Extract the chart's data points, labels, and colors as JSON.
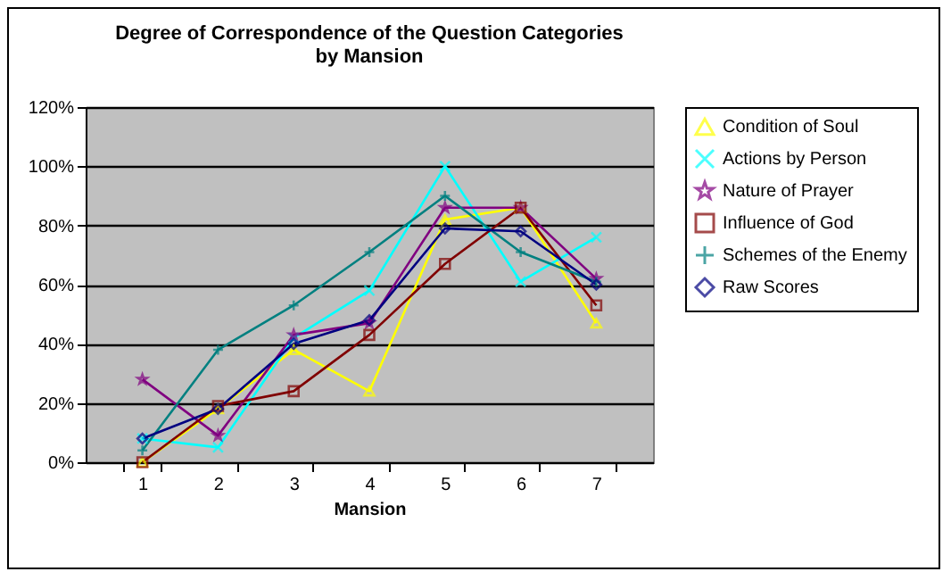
{
  "chart_data": {
    "type": "line",
    "title": "Degree of Correspondence of the Question Categories by Mansion",
    "xlabel": "Mansion",
    "categories": [
      "1",
      "2",
      "3",
      "4",
      "5",
      "6",
      "7"
    ],
    "ylim": [
      0,
      120
    ],
    "yticks": [
      {
        "value": 0,
        "label": "0%"
      },
      {
        "value": 20,
        "label": "20%"
      },
      {
        "value": 40,
        "label": "40%"
      },
      {
        "value": 60,
        "label": "60%"
      },
      {
        "value": 80,
        "label": "80%"
      },
      {
        "value": 100,
        "label": "100%"
      },
      {
        "value": 120,
        "label": "120%"
      }
    ],
    "grid": "y",
    "legend": "right",
    "series": [
      {
        "name": "Condition of Soul",
        "color": "#ffff00",
        "marker": "triangle",
        "values": [
          0,
          18,
          38,
          24,
          82,
          86,
          47
        ]
      },
      {
        "name": "Actions by Person",
        "color": "#00ffff",
        "marker": "cross",
        "values": [
          8,
          5,
          42,
          58,
          100,
          61,
          76
        ]
      },
      {
        "name": "Nature of Prayer",
        "color": "#800080",
        "marker": "star",
        "values": [
          28,
          9,
          43,
          47,
          86,
          86,
          62
        ]
      },
      {
        "name": "Influence of God",
        "color": "#800000",
        "marker": "square",
        "values": [
          0,
          19,
          24,
          43,
          67,
          86,
          53
        ]
      },
      {
        "name": "Schemes of the Enemy",
        "color": "#008080",
        "marker": "plus",
        "values": [
          4,
          38,
          53,
          71,
          90,
          71,
          61
        ]
      },
      {
        "name": "Raw Scores",
        "color": "#000080",
        "marker": "diamond",
        "values": [
          8,
          18,
          40,
          48,
          79,
          78,
          60
        ]
      }
    ]
  }
}
